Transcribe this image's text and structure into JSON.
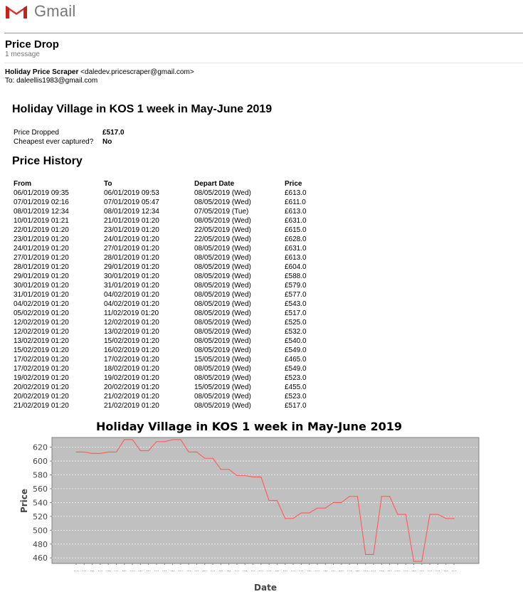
{
  "app": {
    "name": "Gmail"
  },
  "email": {
    "subject": "Price Drop",
    "message_count": "1 message",
    "sender_name": "Holiday Price Scraper",
    "sender_email": "<daledev.pricescraper@gmail.com>",
    "to_line": "To: daleellis1983@gmail.com"
  },
  "content": {
    "title": "Holiday Village in KOS 1 week in May-June 2019",
    "summary": [
      {
        "label": "Price Dropped",
        "value": "£517.0"
      },
      {
        "label": "Cheapest ever captured?",
        "value": "No"
      }
    ],
    "history_title": "Price History",
    "history_headers": [
      "From",
      "To",
      "Depart Date",
      "Price"
    ],
    "history_rows": [
      [
        "06/01/2019 09:35",
        "06/01/2019 09:53",
        "08/05/2019 (Wed)",
        "£613.0"
      ],
      [
        "07/01/2019 02:16",
        "07/01/2019 05:47",
        "08/05/2019 (Wed)",
        "£611.0"
      ],
      [
        "08/01/2019 12:34",
        "08/01/2019 12:34",
        "07/05/2019 (Tue)",
        "£613.0"
      ],
      [
        "10/01/2019 01:21",
        "21/01/2019 01:20",
        "08/05/2019 (Wed)",
        "£631.0"
      ],
      [
        "22/01/2019 01:20",
        "23/01/2019 01:20",
        "22/05/2019 (Wed)",
        "£615.0"
      ],
      [
        "23/01/2019 01:20",
        "24/01/2019 01:20",
        "22/05/2019 (Wed)",
        "£628.0"
      ],
      [
        "24/01/2019 01:20",
        "27/01/2019 01:20",
        "08/05/2019 (Wed)",
        "£631.0"
      ],
      [
        "27/01/2019 01:20",
        "28/01/2019 01:20",
        "08/05/2019 (Wed)",
        "£613.0"
      ],
      [
        "28/01/2019 01:20",
        "29/01/2019 01:20",
        "08/05/2019 (Wed)",
        "£604.0"
      ],
      [
        "29/01/2019 01:20",
        "30/01/2019 01:20",
        "08/05/2019 (Wed)",
        "£588.0"
      ],
      [
        "30/01/2019 01:20",
        "31/01/2019 01:20",
        "08/05/2019 (Wed)",
        "£579.0"
      ],
      [
        "31/01/2019 01:20",
        "04/02/2019 01:20",
        "08/05/2019 (Wed)",
        "£577.0"
      ],
      [
        "04/02/2019 01:20",
        "04/02/2019 01:20",
        "08/05/2019 (Wed)",
        "£543.0"
      ],
      [
        "05/02/2019 01:20",
        "11/02/2019 01:20",
        "08/05/2019 (Wed)",
        "£517.0"
      ],
      [
        "12/02/2019 01:20",
        "12/02/2019 01:20",
        "08/05/2019 (Wed)",
        "£525.0"
      ],
      [
        "12/02/2019 01:20",
        "13/02/2019 01:20",
        "08/05/2019 (Wed)",
        "£532.0"
      ],
      [
        "13/02/2019 01:20",
        "15/02/2019 01:20",
        "08/05/2019 (Wed)",
        "£540.0"
      ],
      [
        "15/02/2019 01:20",
        "16/02/2019 01:20",
        "08/05/2019 (Wed)",
        "£549.0"
      ],
      [
        "17/02/2019 01:20",
        "17/02/2019 01:20",
        "15/05/2019 (Wed)",
        "£465.0"
      ],
      [
        "17/02/2019 01:20",
        "18/02/2019 01:20",
        "08/05/2019 (Wed)",
        "£549.0"
      ],
      [
        "19/02/2019 01:20",
        "19/02/2019 01:20",
        "08/05/2019 (Wed)",
        "£523.0"
      ],
      [
        "20/02/2019 01:20",
        "20/02/2019 01:20",
        "15/05/2019 (Wed)",
        "£455.0"
      ],
      [
        "20/02/2019 01:20",
        "21/02/2019 01:20",
        "08/05/2019 (Wed)",
        "£523.0"
      ],
      [
        "21/02/2019 01:20",
        "21/02/2019 01:20",
        "08/05/2019 (Wed)",
        "£517.0"
      ]
    ]
  },
  "colors": {
    "plot_background": "#c0c0c0",
    "line": "#ff6060",
    "gmail_red": "#d93025"
  },
  "chart_data": {
    "type": "line",
    "title": "Holiday Village in KOS 1 week in May-June 2019",
    "xlabel": "Date",
    "ylabel": "Price",
    "ylim": [
      452,
      634
    ],
    "yticks": [
      460,
      480,
      500,
      520,
      540,
      560,
      580,
      600,
      620
    ],
    "x_tick_labels": [
      "...",
      "...",
      "...",
      "...",
      "...",
      "...",
      "...",
      "...",
      "...",
      "...",
      "...",
      "...",
      "...",
      "...",
      "...",
      "...",
      "...",
      "...",
      "...",
      "...",
      "...",
      "...",
      "...",
      "...",
      "...",
      "...",
      "...",
      "...",
      "...",
      "...",
      "...",
      "...",
      "...",
      "...",
      "...",
      "...",
      "...",
      "...",
      "...",
      "...",
      "...",
      "...",
      "...",
      "...",
      "...",
      "...",
      "...",
      "..."
    ],
    "grid": true,
    "values": [
      613,
      613,
      611,
      611,
      613,
      613,
      631,
      631,
      615,
      615,
      628,
      628,
      631,
      631,
      613,
      613,
      604,
      604,
      588,
      588,
      579,
      579,
      577,
      577,
      543,
      543,
      517,
      517,
      525,
      525,
      532,
      532,
      540,
      540,
      549,
      549,
      465,
      465,
      549,
      549,
      523,
      523,
      455,
      455,
      523,
      523,
      517,
      517
    ]
  }
}
